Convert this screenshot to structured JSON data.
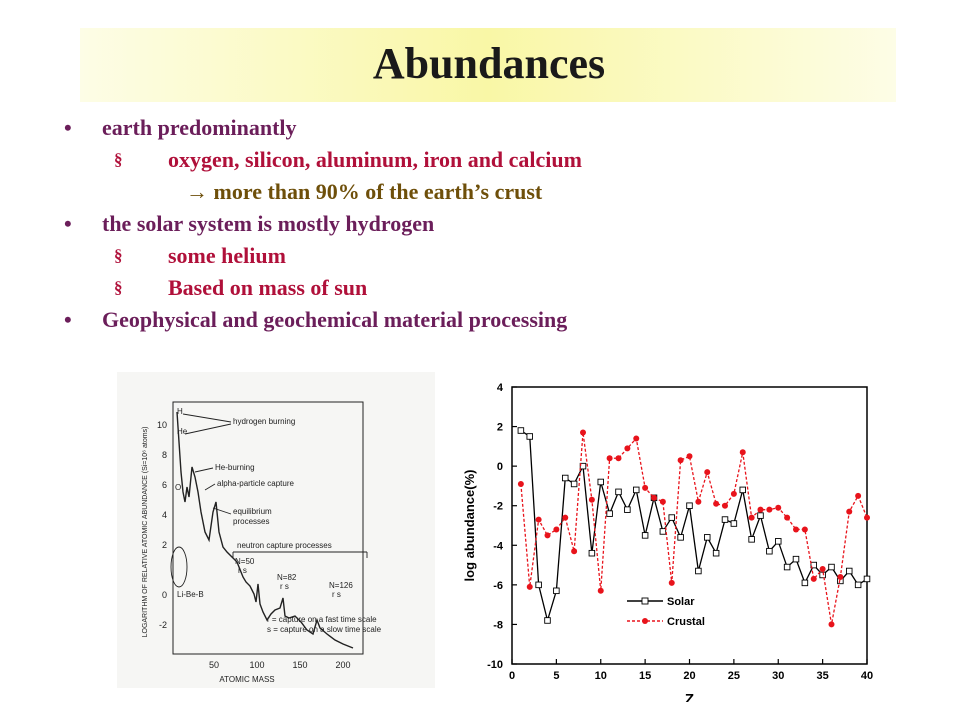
{
  "title": "Abundances",
  "bullets": [
    {
      "level": 1,
      "marker": "•",
      "text": "earth predominantly"
    },
    {
      "level": 2,
      "marker": "§",
      "text": "oxygen, silicon, aluminum, iron and calcium"
    },
    {
      "level": 3,
      "marker": "",
      "text": "→ more than 90% of the earth’s crust"
    },
    {
      "level": 1,
      "marker": "•",
      "text": "the solar system is mostly hydrogen"
    },
    {
      "level": 2,
      "marker": "§",
      "text": "some helium"
    },
    {
      "level": 2,
      "marker": "§",
      "text": "Based on mass of sun"
    },
    {
      "level": 1,
      "marker": "•",
      "text": "Geophysical and geochemical material processing"
    }
  ],
  "left_figure": {
    "ylabel": "LOGARITHM OF RELATIVE ATOMIC ABUNDANCE (Si=10⁶ atoms)",
    "xlabel": "ATOMIC MASS",
    "x_ticks": [
      "50",
      "100",
      "150",
      "200"
    ],
    "y_ticks": [
      "10",
      "8",
      "6",
      "4",
      "2",
      "0",
      "-2"
    ],
    "annotations": {
      "h": "H",
      "he": "He",
      "o": "O",
      "hydrogen_burning": "hydrogen burning",
      "he_burning": "He-burning",
      "alpha_capture": "alpha-particle capture",
      "equilibrium": "equilibrium",
      "processes": "processes",
      "neutron": "neutron capture processes",
      "n50": "N=50",
      "n82": "N=82",
      "n126": "N=126",
      "rs": "r  s",
      "libeb": "Li-Be-B",
      "note_r": "r = capture on a fast time scale",
      "note_s": "s = capture on a slow time scale"
    }
  },
  "chart_data": {
    "type": "line",
    "xlabel": "Z",
    "ylabel": "log abundance(%)",
    "xlim": [
      0,
      40
    ],
    "ylim": [
      -10,
      4
    ],
    "x_ticks": [
      "0",
      "5",
      "10",
      "15",
      "20",
      "25",
      "30",
      "35",
      "40"
    ],
    "y_ticks": [
      "4",
      "2",
      "0",
      "-2",
      "-4",
      "-6",
      "-8",
      "-10"
    ],
    "series": [
      {
        "name": "Solar",
        "color": "#000000",
        "marker": "square-open",
        "x": [
          1,
          2,
          3,
          4,
          5,
          6,
          7,
          8,
          9,
          10,
          11,
          12,
          13,
          14,
          15,
          16,
          17,
          18,
          19,
          20,
          21,
          22,
          23,
          24,
          25,
          26,
          27,
          28,
          29,
          30,
          31,
          32,
          33,
          34,
          35,
          36,
          37,
          38,
          39,
          40
        ],
        "y": [
          1.8,
          1.5,
          -6.0,
          -7.8,
          -6.3,
          -0.6,
          -0.9,
          0.0,
          -4.4,
          -0.8,
          -2.4,
          -1.3,
          -2.2,
          -1.2,
          -3.5,
          -1.6,
          -3.3,
          -2.6,
          -3.6,
          -2.0,
          -5.3,
          -3.6,
          -4.4,
          -2.7,
          -2.9,
          -1.2,
          -3.7,
          -2.5,
          -4.3,
          -3.8,
          -5.1,
          -4.7,
          -5.9,
          -5.0,
          -5.5,
          -5.1,
          -5.8,
          -5.3,
          -6.0,
          -5.7
        ]
      },
      {
        "name": "Crustal",
        "color": "#e8131b",
        "marker": "circle-filled",
        "x": [
          1,
          2,
          3,
          4,
          5,
          6,
          7,
          8,
          9,
          10,
          11,
          12,
          13,
          14,
          15,
          16,
          17,
          18,
          19,
          20,
          21,
          22,
          23,
          24,
          25,
          26,
          27,
          28,
          29,
          30,
          31,
          32,
          33,
          34,
          35,
          36,
          37,
          38,
          39,
          40
        ],
        "y": [
          -0.9,
          -6.1,
          -2.7,
          -3.5,
          -3.2,
          -2.6,
          -4.3,
          1.7,
          -1.7,
          -6.3,
          0.4,
          0.4,
          0.9,
          1.4,
          -1.1,
          -1.6,
          -1.8,
          -5.9,
          0.3,
          0.5,
          -1.8,
          -0.3,
          -1.9,
          -2.0,
          -1.4,
          0.7,
          -2.6,
          -2.2,
          -2.2,
          -2.1,
          -2.6,
          -3.2,
          -3.2,
          -5.7,
          -5.2,
          -8.0,
          -5.6,
          -2.3,
          -1.5,
          -2.6
        ]
      }
    ],
    "legend_position": "bottom-right",
    "grid": false
  }
}
